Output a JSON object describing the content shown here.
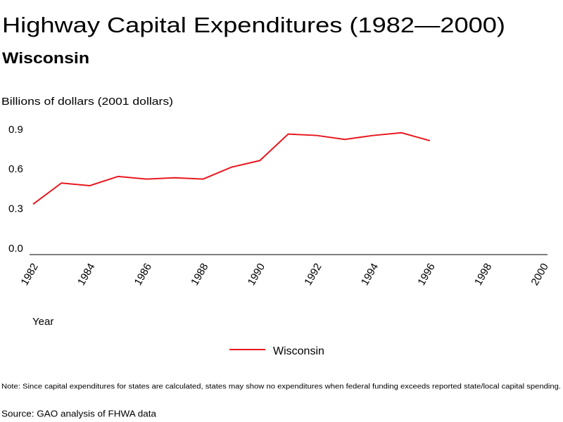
{
  "chart_data": {
    "type": "line",
    "title": "Highway Capital Expenditures (1982—2000)",
    "subtitle": "Wisconsin",
    "y_label": "Billions of dollars (2001 dollars)",
    "x_label": "Year",
    "x": [
      1982,
      1983,
      1984,
      1985,
      1986,
      1987,
      1988,
      1989,
      1990,
      1991,
      1992,
      1993,
      1994,
      1995,
      1996
    ],
    "series": [
      {
        "name": "Wisconsin",
        "color": "#e8171e",
        "values": [
          0.36,
          0.52,
          0.5,
          0.57,
          0.55,
          0.56,
          0.55,
          0.64,
          0.69,
          0.89,
          0.88,
          0.85,
          0.88,
          0.9,
          0.84
        ]
      }
    ],
    "xlim": [
      1982,
      2000
    ],
    "xticks": [
      1982,
      1984,
      1986,
      1988,
      1990,
      1992,
      1994,
      1996,
      1998,
      2000
    ],
    "ylim": [
      0,
      1
    ],
    "yticks": [
      {
        "value": 0,
        "label": "0.0"
      },
      0.3,
      0.6,
      0.9
    ],
    "grid": false,
    "legend": "bottom",
    "note": "Note: Since capital expenditures for states are calculated, states may show no expenditures when federal funding exceeds reported state/local capital spending.",
    "source": "Source: GAO analysis of FHWA data"
  }
}
